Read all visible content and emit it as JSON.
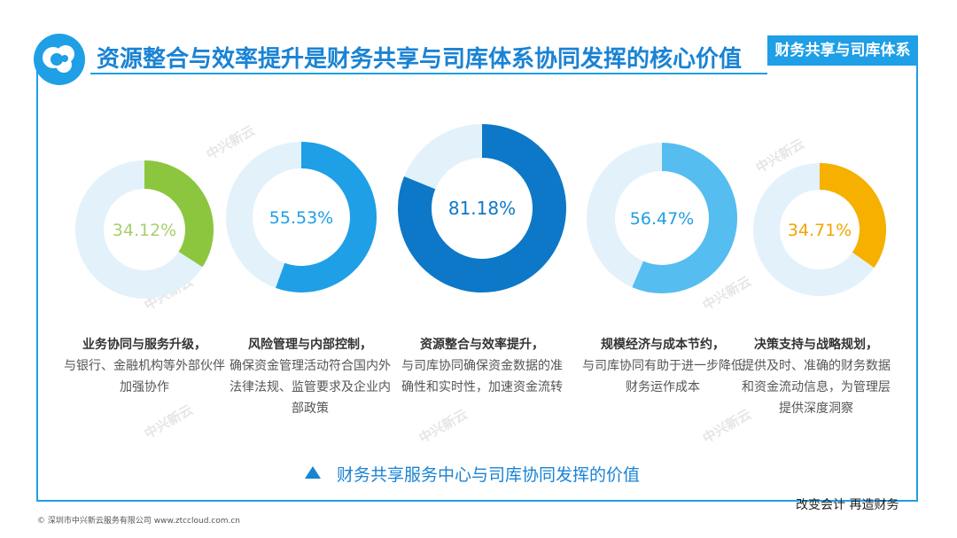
{
  "header": {
    "title": "资源整合与效率提升是财务共享与司库体系协同发挥的核心价值",
    "tag": "财务共享与司库体系"
  },
  "chart_data": {
    "type": "donut",
    "items": [
      {
        "label": "34.12%",
        "value": 34.12,
        "color": "#8cc63f",
        "label_color": "#a7cf6e",
        "heading": "业务协同与服务升级，",
        "text": "与银行、金融机构等外部伙伴加强协作"
      },
      {
        "label": "55.53%",
        "value": 55.53,
        "color": "#1e9fe6",
        "label_color": "#1e9fe6",
        "heading": "风险管理与内部控制，",
        "text": "确保资金管理活动符合国内外法律法规、监管要求及企业内部政策"
      },
      {
        "label": "81.18%",
        "value": 81.18,
        "color": "#0d78c7",
        "label_color": "#0d78c7",
        "heading": "资源整合与效率提升，",
        "text": "与司库协同确保资金数据的准确性和实时性，加速资金流转"
      },
      {
        "label": "56.47%",
        "value": 56.47,
        "color": "#55bdf0",
        "label_color": "#1e9fe6",
        "heading": "规模经济与成本节约，",
        "text": "与司库协同有助于进一步降低财务运作成本"
      },
      {
        "label": "34.71%",
        "value": 34.71,
        "color": "#f5b000",
        "label_color": "#f0a500",
        "heading": "决策支持与战略规划，",
        "text": "提供及时、准确的财务数据和资金流动信息，为管理层提供深度洞察"
      }
    ],
    "track_color": "#e3f1fb"
  },
  "caption": "财务共享服务中心与司库协同发挥的价值",
  "slogan": "改变会计 再造财务",
  "footer": "© 深圳市中兴新云服务有限公司 www.ztccloud.com.cn",
  "watermark": "中兴新云"
}
